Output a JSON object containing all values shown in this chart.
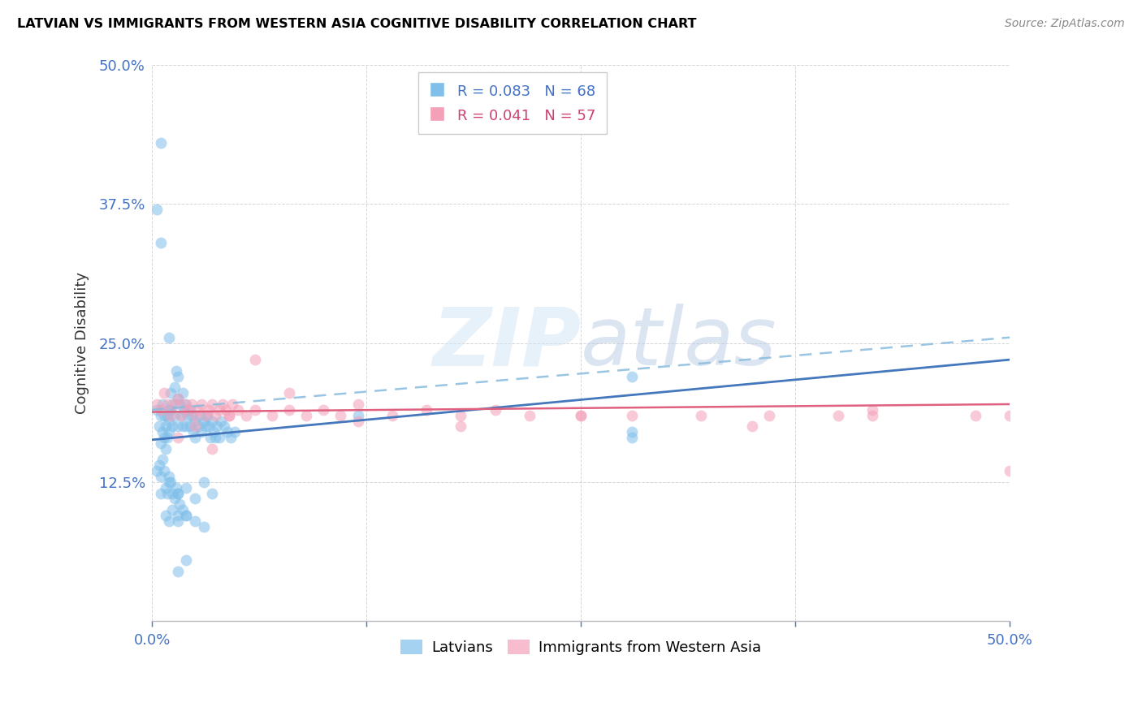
{
  "title": "LATVIAN VS IMMIGRANTS FROM WESTERN ASIA COGNITIVE DISABILITY CORRELATION CHART",
  "source": "Source: ZipAtlas.com",
  "ylabel": "Cognitive Disability",
  "xlim": [
    0.0,
    0.5
  ],
  "ylim": [
    0.0,
    0.5
  ],
  "yticks": [
    0.0,
    0.125,
    0.25,
    0.375,
    0.5
  ],
  "ytick_labels": [
    "",
    "12.5%",
    "25.0%",
    "37.5%",
    "50.0%"
  ],
  "xticks": [
    0.0,
    0.125,
    0.25,
    0.375,
    0.5
  ],
  "xtick_labels": [
    "0.0%",
    "",
    "",
    "",
    "50.0%"
  ],
  "legend1_label": "R = 0.083   N = 68",
  "legend2_label": "R = 0.041   N = 57",
  "series1_color": "#7fbfea",
  "series2_color": "#f4a0b8",
  "trend1_solid_color": "#4477bb",
  "trend1_dash_color": "#88bbdd",
  "trend2_color": "#e06080",
  "watermark": "ZIPatlas",
  "blue_dot_x": [
    0.003,
    0.004,
    0.005,
    0.005,
    0.006,
    0.006,
    0.007,
    0.007,
    0.008,
    0.008,
    0.009,
    0.009,
    0.01,
    0.01,
    0.01,
    0.011,
    0.011,
    0.012,
    0.012,
    0.013,
    0.013,
    0.014,
    0.015,
    0.015,
    0.015,
    0.016,
    0.017,
    0.018,
    0.018,
    0.019,
    0.02,
    0.02,
    0.021,
    0.022,
    0.022,
    0.023,
    0.024,
    0.025,
    0.025,
    0.027,
    0.028,
    0.029,
    0.03,
    0.031,
    0.032,
    0.033,
    0.034,
    0.035,
    0.036,
    0.037,
    0.038,
    0.039,
    0.04,
    0.042,
    0.044,
    0.046,
    0.048,
    0.12,
    0.005,
    0.01,
    0.015,
    0.02,
    0.025,
    0.03,
    0.035,
    0.28,
    0.015,
    0.02
  ],
  "blue_dot_y": [
    0.19,
    0.175,
    0.16,
    0.185,
    0.17,
    0.195,
    0.185,
    0.165,
    0.155,
    0.175,
    0.185,
    0.165,
    0.18,
    0.19,
    0.17,
    0.205,
    0.19,
    0.175,
    0.195,
    0.185,
    0.21,
    0.225,
    0.22,
    0.2,
    0.175,
    0.195,
    0.185,
    0.205,
    0.175,
    0.19,
    0.195,
    0.175,
    0.185,
    0.19,
    0.175,
    0.185,
    0.17,
    0.18,
    0.165,
    0.175,
    0.185,
    0.17,
    0.18,
    0.175,
    0.185,
    0.175,
    0.165,
    0.18,
    0.17,
    0.165,
    0.175,
    0.165,
    0.18,
    0.175,
    0.17,
    0.165,
    0.17,
    0.185,
    0.115,
    0.125,
    0.115,
    0.12,
    0.11,
    0.125,
    0.115,
    0.17,
    0.09,
    0.095
  ],
  "blue_dot_x2": [
    0.003,
    0.004,
    0.005,
    0.006,
    0.007,
    0.008,
    0.009,
    0.01,
    0.011,
    0.012,
    0.013,
    0.014,
    0.015,
    0.016,
    0.008,
    0.01,
    0.012,
    0.015,
    0.018,
    0.02,
    0.025,
    0.03
  ],
  "blue_dot_y2": [
    0.135,
    0.14,
    0.13,
    0.145,
    0.135,
    0.12,
    0.115,
    0.13,
    0.125,
    0.115,
    0.11,
    0.12,
    0.115,
    0.105,
    0.095,
    0.09,
    0.1,
    0.095,
    0.1,
    0.095,
    0.09,
    0.085
  ],
  "blue_outlier_x": [
    0.005,
    0.003,
    0.28,
    0.005,
    0.01,
    0.015,
    0.02,
    0.28
  ],
  "blue_outlier_y": [
    0.43,
    0.37,
    0.165,
    0.34,
    0.255,
    0.045,
    0.055,
    0.22
  ],
  "pink_dot_x": [
    0.003,
    0.005,
    0.007,
    0.009,
    0.011,
    0.013,
    0.015,
    0.017,
    0.019,
    0.021,
    0.023,
    0.025,
    0.027,
    0.029,
    0.031,
    0.033,
    0.035,
    0.037,
    0.039,
    0.041,
    0.043,
    0.045,
    0.047,
    0.05,
    0.055,
    0.06,
    0.07,
    0.08,
    0.09,
    0.1,
    0.11,
    0.12,
    0.14,
    0.16,
    0.18,
    0.2,
    0.22,
    0.25,
    0.28,
    0.32,
    0.36,
    0.4,
    0.42,
    0.48,
    0.5,
    0.015,
    0.025,
    0.035,
    0.045,
    0.06,
    0.08,
    0.12,
    0.18,
    0.25,
    0.35,
    0.42,
    0.5
  ],
  "pink_dot_y": [
    0.195,
    0.19,
    0.205,
    0.195,
    0.185,
    0.195,
    0.2,
    0.185,
    0.195,
    0.19,
    0.195,
    0.185,
    0.19,
    0.195,
    0.185,
    0.19,
    0.195,
    0.185,
    0.19,
    0.195,
    0.19,
    0.185,
    0.195,
    0.19,
    0.185,
    0.19,
    0.185,
    0.19,
    0.185,
    0.19,
    0.185,
    0.18,
    0.185,
    0.19,
    0.185,
    0.19,
    0.185,
    0.185,
    0.185,
    0.185,
    0.185,
    0.185,
    0.19,
    0.185,
    0.185,
    0.165,
    0.175,
    0.155,
    0.185,
    0.235,
    0.205,
    0.195,
    0.175,
    0.185,
    0.175,
    0.185,
    0.135
  ],
  "trend1_x0": 0.0,
  "trend1_x1": 0.5,
  "trend1_y0": 0.163,
  "trend1_y1": 0.235,
  "trend1_dash_y0": 0.19,
  "trend1_dash_y1": 0.255,
  "trend2_y0": 0.188,
  "trend2_y1": 0.195
}
